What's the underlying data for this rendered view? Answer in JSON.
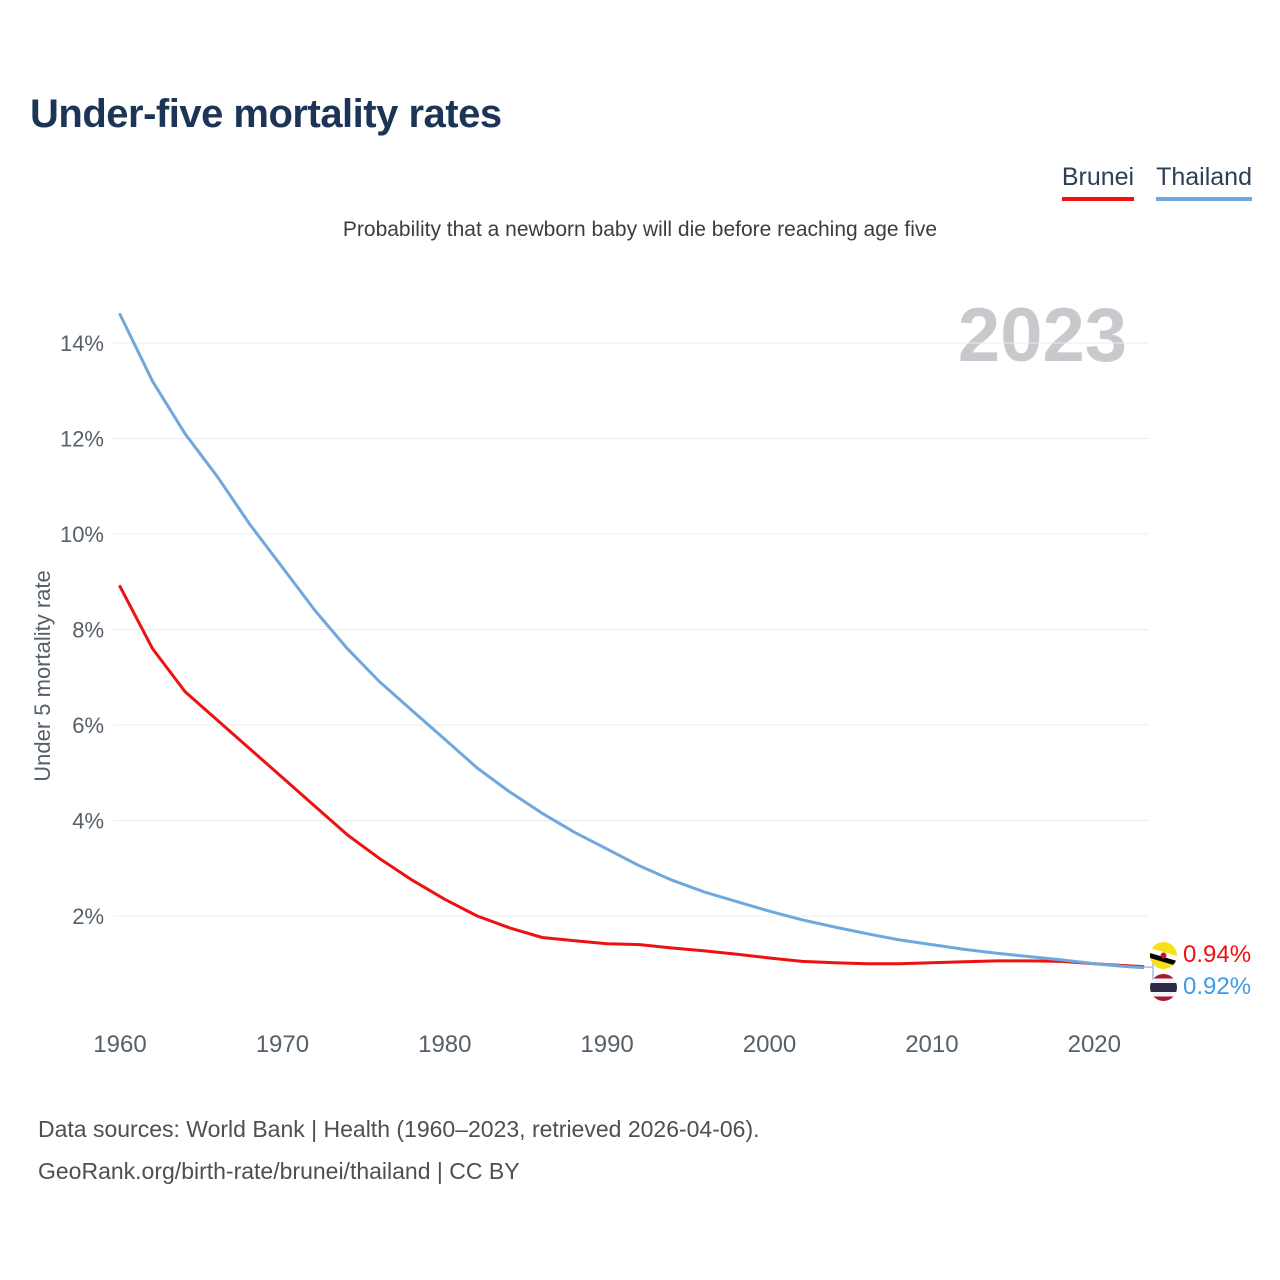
{
  "header": {
    "title": "Under-five mortality rates",
    "subtitle": "Probability that a newborn baby will die before reaching age five"
  },
  "watermark": "2023",
  "legend": {
    "items": [
      {
        "label": "Brunei",
        "color": "#ee1111"
      },
      {
        "label": "Thailand",
        "color": "#6fa8dc"
      }
    ]
  },
  "end_labels": [
    {
      "series": "Brunei",
      "value": "0.94%",
      "color": "#ee1111",
      "flag": "brunei-flag-icon"
    },
    {
      "series": "Thailand",
      "value": "0.92%",
      "color": "#3d9be9",
      "flag": "thailand-flag-icon"
    }
  ],
  "footer": {
    "line1": "Data sources: World Bank | Health (1960–2023, retrieved 2026-04-06).",
    "line2": "GeoRank.org/birth-rate/brunei/thailand | CC BY"
  },
  "chart_data": {
    "type": "line",
    "title": "Under-five mortality rates",
    "subtitle": "Probability that a newborn baby will die before reaching age five",
    "ylabel": "Under 5 mortality rate",
    "xlabel": "",
    "grid": true,
    "legend_position": "top-right",
    "xlim": [
      1960,
      2023
    ],
    "ylim": [
      0,
      15.3
    ],
    "x_ticks": [
      1960,
      1970,
      1980,
      1990,
      2000,
      2010,
      2020
    ],
    "y_ticks": [
      "2%",
      "4%",
      "6%",
      "8%",
      "10%",
      "12%",
      "14%"
    ],
    "year_label": "2023",
    "series": [
      {
        "name": "Brunei",
        "color": "#ee1111",
        "end_label": "0.94%",
        "x": [
          1960,
          1962,
          1964,
          1966,
          1968,
          1970,
          1972,
          1974,
          1976,
          1978,
          1980,
          1982,
          1984,
          1986,
          1988,
          1990,
          1992,
          1994,
          1996,
          1998,
          2000,
          2002,
          2004,
          2006,
          2008,
          2010,
          2012,
          2014,
          2016,
          2018,
          2020,
          2022,
          2023
        ],
        "values": [
          8.9,
          7.6,
          6.7,
          6.1,
          5.5,
          4.9,
          4.3,
          3.7,
          3.2,
          2.75,
          2.35,
          2.0,
          1.75,
          1.55,
          1.48,
          1.42,
          1.4,
          1.33,
          1.27,
          1.2,
          1.12,
          1.05,
          1.02,
          1.0,
          1.0,
          1.02,
          1.04,
          1.06,
          1.06,
          1.05,
          1.0,
          0.96,
          0.94
        ]
      },
      {
        "name": "Thailand",
        "color": "#6fa8dc",
        "end_label": "0.92%",
        "x": [
          1960,
          1962,
          1964,
          1966,
          1968,
          1970,
          1972,
          1974,
          1976,
          1978,
          1980,
          1982,
          1984,
          1986,
          1988,
          1990,
          1992,
          1994,
          1996,
          1998,
          2000,
          2002,
          2004,
          2006,
          2008,
          2010,
          2012,
          2014,
          2016,
          2018,
          2020,
          2022,
          2023
        ],
        "values": [
          14.6,
          13.2,
          12.1,
          11.2,
          10.2,
          9.3,
          8.4,
          7.6,
          6.9,
          6.3,
          5.7,
          5.1,
          4.6,
          4.15,
          3.75,
          3.4,
          3.05,
          2.75,
          2.5,
          2.3,
          2.1,
          1.92,
          1.77,
          1.63,
          1.5,
          1.4,
          1.3,
          1.22,
          1.15,
          1.08,
          1.0,
          0.94,
          0.92
        ]
      }
    ]
  }
}
